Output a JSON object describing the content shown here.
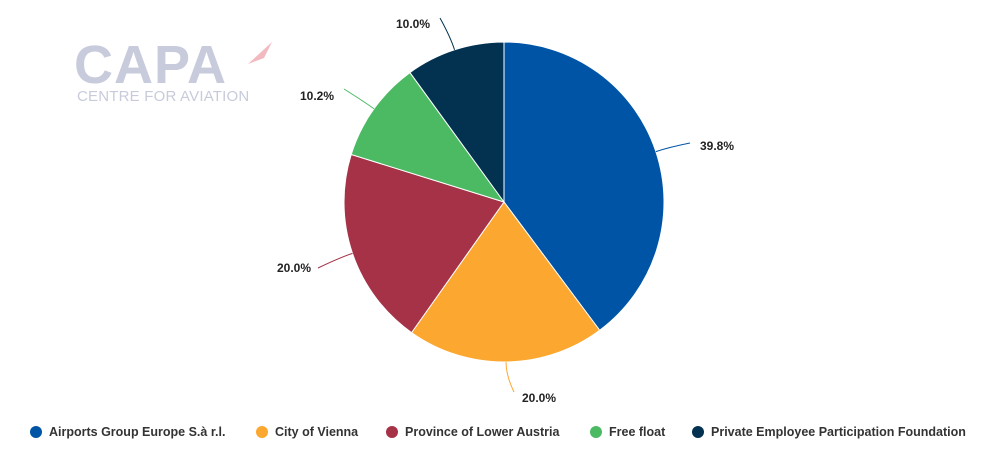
{
  "logo": {
    "main": "CAPA",
    "sub": "CENTRE FOR AVIATION"
  },
  "chart_data": {
    "type": "pie",
    "title": "",
    "unit": "%",
    "start_angle_deg": 0,
    "direction": "clockwise",
    "legend_position": "bottom",
    "slices": [
      {
        "name": "Airports Group Europe S.à r.l.",
        "value": 39.8,
        "label": "39.8%",
        "color": "#0054a6"
      },
      {
        "name": "City of Vienna",
        "value": 20.0,
        "label": "20.0%",
        "color": "#fca72f"
      },
      {
        "name": "Province of Lower Austria",
        "value": 20.0,
        "label": "20.0%",
        "color": "#a53247"
      },
      {
        "name": "Free float",
        "value": 10.2,
        "label": "10.2%",
        "color": "#4cba63"
      },
      {
        "name": "Private Employee Participation Foundation",
        "value": 10.0,
        "label": "10.0%",
        "color": "#02324f"
      }
    ]
  }
}
